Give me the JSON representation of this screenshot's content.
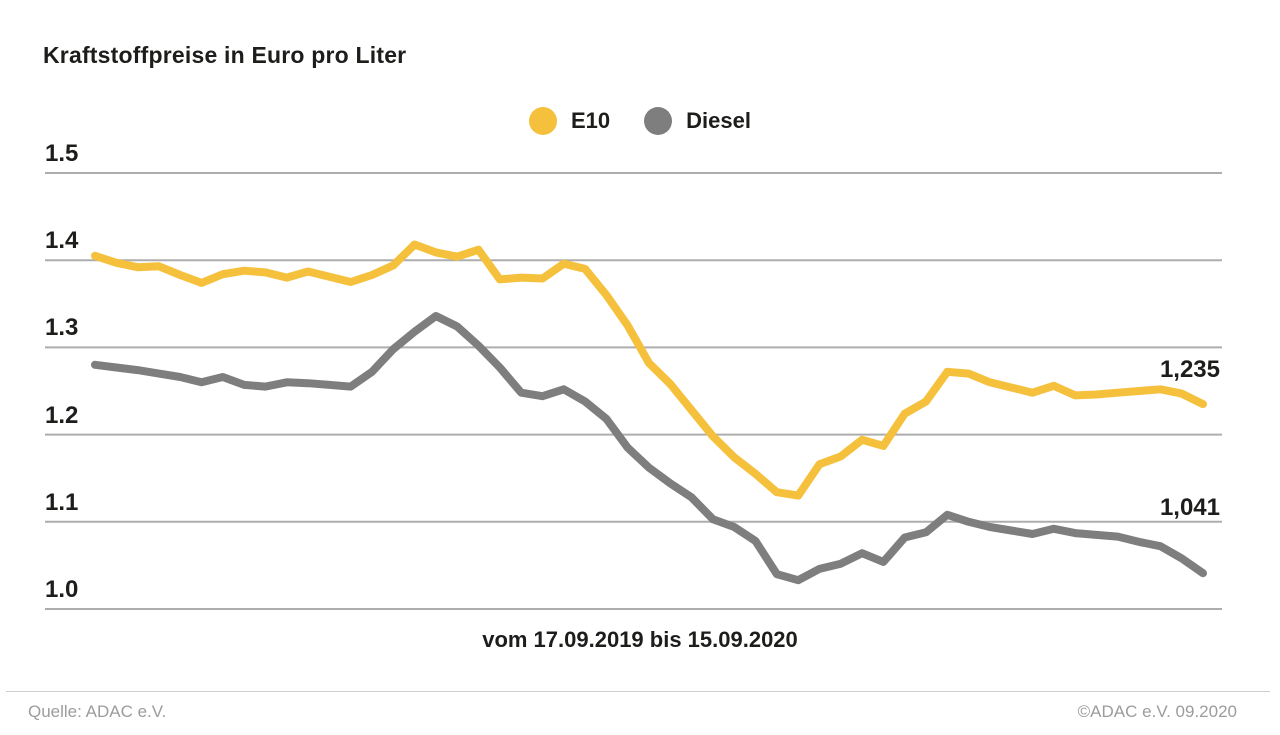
{
  "page": {
    "background": "#FFFFFF"
  },
  "chart_data": {
    "type": "line",
    "title": "Kraftstoffpreise in Euro pro Liter",
    "x_caption": "vom 17.09.2019 bis 15.09.2020",
    "x_range": {
      "from": "17.09.2019",
      "to": "15.09.2020"
    },
    "ylim": [
      1.0,
      1.5
    ],
    "grid": "horizontal",
    "legend_position": "top-center",
    "grid_color": "#ADADAD",
    "y_ticks": [
      {
        "label": "1.5",
        "value": 1.5
      },
      {
        "label": "1.4",
        "value": 1.4
      },
      {
        "label": "1.3",
        "value": 1.3
      },
      {
        "label": "1.2",
        "value": 1.2
      },
      {
        "label": "1.1",
        "value": 1.1
      },
      {
        "label": "1.0",
        "value": 1.0
      }
    ],
    "series": [
      {
        "name": "E10",
        "color": "#F5C13C",
        "end_label": "1,235",
        "values": [
          1.405,
          1.397,
          1.392,
          1.393,
          1.383,
          1.374,
          1.384,
          1.388,
          1.386,
          1.38,
          1.387,
          1.381,
          1.375,
          1.383,
          1.394,
          1.418,
          1.409,
          1.404,
          1.412,
          1.378,
          1.38,
          1.379,
          1.396,
          1.39,
          1.36,
          1.325,
          1.282,
          1.258,
          1.228,
          1.198,
          1.174,
          1.155,
          1.134,
          1.13,
          1.166,
          1.175,
          1.194,
          1.187,
          1.224,
          1.238,
          1.272,
          1.27,
          1.26,
          1.254,
          1.248,
          1.256,
          1.245,
          1.246,
          1.248,
          1.25,
          1.252,
          1.247,
          1.235
        ]
      },
      {
        "name": "Diesel",
        "color": "#7E7E7E",
        "end_label": "1,041",
        "values": [
          1.28,
          1.277,
          1.274,
          1.27,
          1.266,
          1.26,
          1.266,
          1.257,
          1.255,
          1.26,
          1.259,
          1.257,
          1.255,
          1.272,
          1.298,
          1.318,
          1.336,
          1.324,
          1.302,
          1.277,
          1.248,
          1.244,
          1.252,
          1.238,
          1.218,
          1.185,
          1.162,
          1.144,
          1.128,
          1.103,
          1.094,
          1.078,
          1.04,
          1.033,
          1.046,
          1.052,
          1.064,
          1.054,
          1.082,
          1.088,
          1.108,
          1.1,
          1.094,
          1.09,
          1.086,
          1.092,
          1.087,
          1.085,
          1.083,
          1.077,
          1.072,
          1.058,
          1.041
        ]
      }
    ]
  },
  "footer": {
    "source": "Quelle: ADAC e.V.",
    "copyright": "©ADAC e.V. 09.2020"
  }
}
